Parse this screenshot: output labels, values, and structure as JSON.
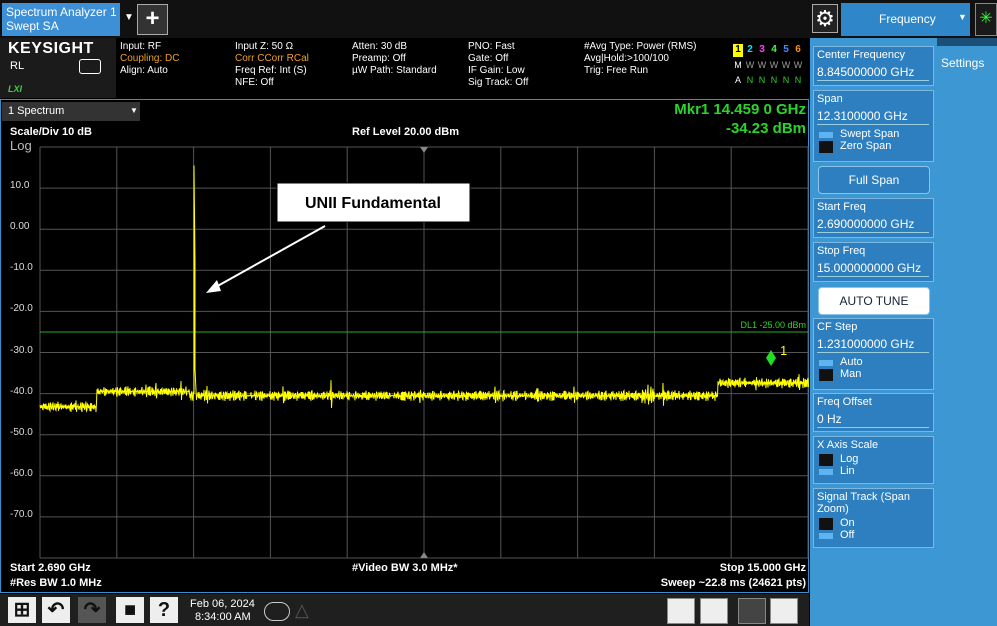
{
  "tab": {
    "line1": "Spectrum Analyzer 1",
    "line2": "Swept SA"
  },
  "mode_button": "Frequency",
  "brand": "KEYSIGHT",
  "rl": "RL",
  "lxi": "LXI",
  "status": [
    [
      "Input: RF",
      "Coupling: DC",
      "Align: Auto"
    ],
    [
      "Input Z: 50 Ω",
      "Corr CCorr RCal",
      "Freq Ref: Int (S)",
      "NFE: Off"
    ],
    [
      "Atten: 30 dB",
      "Preamp: Off",
      "µW Path: Standard"
    ],
    [
      "PNO: Fast",
      "Gate: Off",
      "IF Gain: Low",
      "Sig Track: Off"
    ],
    [
      "#Avg Type: Power (RMS)",
      "Avg|Hold:>100/100",
      "Trig: Free Run"
    ]
  ],
  "traces": {
    "numbers": [
      "1",
      "2",
      "3",
      "4",
      "5",
      "6"
    ],
    "colors": [
      "#ffff00",
      "#00e5ff",
      "#ff40ff",
      "#40ff40",
      "#4a8cff",
      "#ff8c1a"
    ],
    "row2": [
      "M",
      "W",
      "W",
      "W",
      "W",
      "W"
    ],
    "row3": [
      "A",
      "N",
      "N",
      "N",
      "N",
      "N"
    ]
  },
  "window": {
    "title": "1 Spectrum",
    "marker_freq": "Mkr1  14.459 0 GHz",
    "marker_level": "-34.23 dBm",
    "scale": "Scale/Div 10 dB",
    "ref_level": "Ref Level 20.00 dBm",
    "log": "Log",
    "y_labels": [
      "10.0",
      "0.00",
      "-10.0",
      "-20.0",
      "-30.0",
      "-40.0",
      "-50.0",
      "-60.0",
      "-70.0"
    ],
    "display_line": "DL1 -25.00 dBm",
    "marker_label": "1",
    "annotation": "UNII Fundamental",
    "start": "Start 2.690 GHz",
    "res_bw": "#Res BW 1.0 MHz",
    "video_bw": "#Video BW 3.0 MHz*",
    "stop": "Stop 15.000 GHz",
    "sweep": "Sweep ~22.8 ms (24621 pts)"
  },
  "taskbar": {
    "date": "Feb 06, 2024",
    "time": "8:34:00 AM"
  },
  "menu": {
    "tab": "Settings",
    "keys": [
      {
        "label": "Center Frequency",
        "value": "8.845000000 GHz"
      },
      {
        "label": "Span",
        "value": "12.3100000 GHz",
        "options": [
          "Swept Span",
          "Zero Span"
        ],
        "selected": 0
      },
      {
        "button": "Full Span"
      },
      {
        "label": "Start Freq",
        "value": "2.690000000 GHz"
      },
      {
        "label": "Stop Freq",
        "value": "15.000000000 GHz"
      },
      {
        "button": "AUTO TUNE"
      },
      {
        "label": "CF Step",
        "value": "1.231000000 GHz",
        "options": [
          "Auto",
          "Man"
        ],
        "selected": 0
      },
      {
        "label": "Freq Offset",
        "value": "0 Hz"
      },
      {
        "label": "X Axis Scale",
        "options": [
          "Log",
          "Lin"
        ],
        "selected": 1
      },
      {
        "label": "Signal Track (Span Zoom)",
        "options": [
          "On",
          "Off"
        ],
        "selected": 1
      }
    ]
  }
}
